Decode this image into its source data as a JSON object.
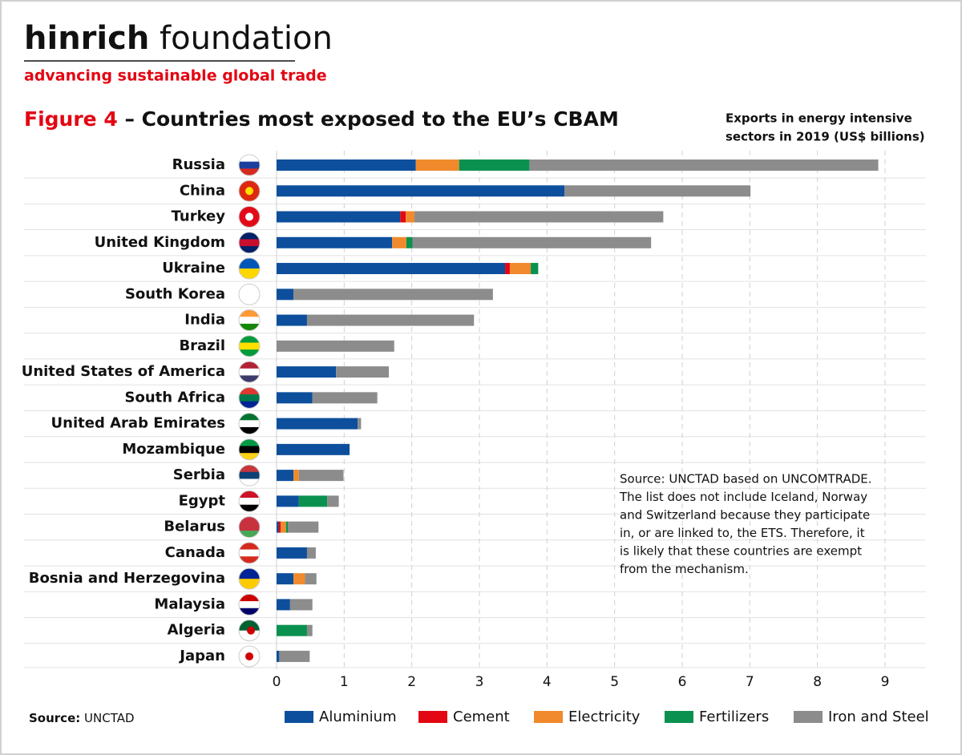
{
  "brand": {
    "name_bold": "hinrich",
    "name_light": "foundation",
    "tagline": "advancing sustainable global trade"
  },
  "chart_data": {
    "type": "stacked_barh",
    "figure_label": "Figure 4",
    "title": "– Countries most exposed to the EU’s CBAM",
    "xlabel": [
      "Exports in energy intensive",
      "sectors in 2019 (US$ billions)"
    ],
    "note": [
      "Source: UNCTAD based on UNCOMTRADE.",
      "The list does not include Iceland, Norway",
      "and Switzerland because they participate",
      "in, or are linked to, the ETS. Therefore, it",
      "is likely that these countries are exempt",
      "from the mechanism."
    ],
    "source_label": "Source:",
    "source": "UNCTAD",
    "categories": [
      "Russia",
      "China",
      "Turkey",
      "United Kingdom",
      "Ukraine",
      "South Korea",
      "India",
      "Brazil",
      "United States of America",
      "South Africa",
      "United Arab Emirates",
      "Mozambique",
      "Serbia",
      "Egypt",
      "Belarus",
      "Canada",
      "Bosnia and Herzegovina",
      "Malaysia",
      "Algeria",
      "Japan"
    ],
    "series": [
      {
        "name": "Aluminium",
        "color": "#0d4f9c",
        "values": [
          2.06,
          4.26,
          1.83,
          1.71,
          3.38,
          0.25,
          0.45,
          0,
          0.88,
          0.53,
          1.2,
          1.08,
          0.25,
          0.33,
          0.03,
          0.45,
          0.25,
          0.2,
          0,
          0.04
        ]
      },
      {
        "name": "Cement",
        "color": "#e30613",
        "values": [
          0,
          0,
          0.08,
          0,
          0.07,
          0,
          0,
          0,
          0,
          0,
          0,
          0,
          0,
          0,
          0.03,
          0,
          0,
          0,
          0,
          0
        ]
      },
      {
        "name": "Electricity",
        "color": "#f08a2c",
        "values": [
          0.64,
          0,
          0.13,
          0.21,
          0.31,
          0,
          0,
          0,
          0,
          0,
          0,
          0,
          0.08,
          0,
          0.08,
          0,
          0.17,
          0,
          0,
          0
        ]
      },
      {
        "name": "Fertilizers",
        "color": "#0a9150",
        "values": [
          1.04,
          0,
          0,
          0.09,
          0.11,
          0,
          0,
          0,
          0,
          0,
          0,
          0,
          0,
          0.42,
          0.03,
          0,
          0,
          0,
          0.45,
          0
        ]
      },
      {
        "name": "Iron and Steel",
        "color": "#8c8c8c",
        "values": [
          5.16,
          2.75,
          3.68,
          3.53,
          0,
          2.95,
          2.47,
          1.74,
          0.78,
          0.96,
          0.05,
          0,
          0.66,
          0.17,
          0.45,
          0.13,
          0.17,
          0.33,
          0.08,
          0.45
        ]
      }
    ],
    "xlim": [
      0,
      9.6
    ],
    "xticks": [
      0,
      1,
      2,
      3,
      4,
      5,
      6,
      7,
      8,
      9
    ],
    "grid": true
  }
}
